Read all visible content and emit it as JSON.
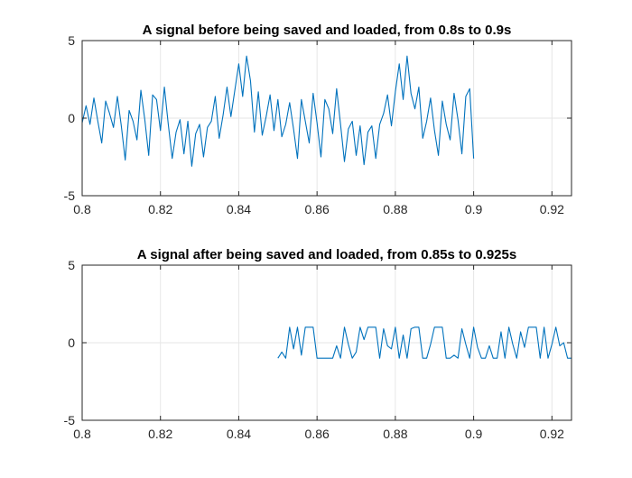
{
  "chart_data": [
    {
      "type": "line",
      "title": "A signal before being saved and loaded, from 0.8s to 0.9s",
      "xlabel": "",
      "ylabel": "",
      "xlim": [
        0.8,
        0.925
      ],
      "ylim": [
        -5,
        5
      ],
      "xticks": [
        0.8,
        0.82,
        0.84,
        0.86,
        0.88,
        0.9,
        0.92
      ],
      "xtick_labels": [
        "0.8",
        "0.82",
        "0.84",
        "0.86",
        "0.88",
        "0.9",
        "0.92"
      ],
      "yticks": [
        -5,
        0,
        5
      ],
      "ytick_labels": [
        "-5",
        "0",
        "5"
      ],
      "grid": true,
      "color": "#0072bd",
      "series": [
        {
          "x": [
            0.8,
            0.801,
            0.802,
            0.803,
            0.804,
            0.805,
            0.806,
            0.807,
            0.808,
            0.809,
            0.81,
            0.811,
            0.812,
            0.813,
            0.814,
            0.815,
            0.816,
            0.817,
            0.818,
            0.819,
            0.82,
            0.821,
            0.822,
            0.823,
            0.824,
            0.825,
            0.826,
            0.827,
            0.828,
            0.829,
            0.83,
            0.831,
            0.832,
            0.833,
            0.834,
            0.835,
            0.836,
            0.837,
            0.838,
            0.839,
            0.84,
            0.841,
            0.842,
            0.843,
            0.844,
            0.845,
            0.846,
            0.847,
            0.848,
            0.849,
            0.85,
            0.851,
            0.852,
            0.853,
            0.854,
            0.855,
            0.856,
            0.857,
            0.858,
            0.859,
            0.86,
            0.861,
            0.862,
            0.863,
            0.864,
            0.865,
            0.866,
            0.867,
            0.868,
            0.869,
            0.87,
            0.871,
            0.872,
            0.873,
            0.874,
            0.875,
            0.876,
            0.877,
            0.878,
            0.879,
            0.88,
            0.881,
            0.882,
            0.883,
            0.884,
            0.885,
            0.886,
            0.887,
            0.888,
            0.889,
            0.89,
            0.891,
            0.892,
            0.893,
            0.894,
            0.895,
            0.896,
            0.897,
            0.898,
            0.899,
            0.9
          ],
          "y": [
            -0.3,
            0.8,
            -0.4,
            1.3,
            -0.2,
            -1.6,
            1.1,
            0.3,
            -0.6,
            1.4,
            -0.5,
            -2.7,
            0.5,
            -0.2,
            -1.4,
            1.8,
            -0.1,
            -2.4,
            1.5,
            1.2,
            -0.8,
            2.0,
            -0.4,
            -2.6,
            -0.9,
            -0.1,
            -2.3,
            -0.2,
            -3.1,
            -1.0,
            -0.4,
            -2.5,
            -0.6,
            -0.2,
            1.4,
            -1.3,
            0.2,
            2.0,
            0.1,
            1.8,
            3.5,
            1.4,
            4.0,
            2.4,
            -0.9,
            1.7,
            -1.1,
            0.1,
            1.5,
            -0.8,
            1.2,
            -1.2,
            -0.4,
            1.0,
            -0.7,
            -2.6,
            1.2,
            -0.2,
            -1.6,
            1.6,
            -0.3,
            -2.5,
            1.2,
            0.6,
            -1.0,
            1.9,
            -0.4,
            -2.8,
            -0.7,
            -0.2,
            -2.4,
            -0.5,
            -3.0,
            -0.9,
            -0.5,
            -2.6,
            -0.4,
            0.3,
            1.5,
            -0.5,
            1.7,
            3.5,
            1.2,
            4.0,
            1.6,
            0.6,
            2.0,
            -1.3,
            -0.2,
            1.3,
            -0.8,
            -2.4,
            1.1,
            -0.4,
            -1.4,
            1.6,
            -0.1,
            -2.3,
            1.4,
            1.9,
            -2.6
          ]
        }
      ]
    },
    {
      "type": "line",
      "title": "A signal after being saved and loaded, from 0.85s to 0.925s",
      "xlabel": "",
      "ylabel": "",
      "xlim": [
        0.8,
        0.925
      ],
      "ylim": [
        -5,
        5
      ],
      "xticks": [
        0.8,
        0.82,
        0.84,
        0.86,
        0.88,
        0.9,
        0.92
      ],
      "xtick_labels": [
        "0.8",
        "0.82",
        "0.84",
        "0.86",
        "0.88",
        "0.9",
        "0.92"
      ],
      "yticks": [
        -5,
        0,
        5
      ],
      "ytick_labels": [
        "-5",
        "0",
        "5"
      ],
      "grid": true,
      "color": "#0072bd",
      "series": [
        {
          "x": [
            0.85,
            0.851,
            0.852,
            0.853,
            0.854,
            0.855,
            0.856,
            0.857,
            0.858,
            0.859,
            0.86,
            0.861,
            0.862,
            0.863,
            0.864,
            0.865,
            0.866,
            0.867,
            0.868,
            0.869,
            0.87,
            0.871,
            0.872,
            0.873,
            0.874,
            0.875,
            0.876,
            0.877,
            0.878,
            0.879,
            0.88,
            0.881,
            0.882,
            0.883,
            0.884,
            0.885,
            0.886,
            0.887,
            0.888,
            0.889,
            0.89,
            0.891,
            0.892,
            0.893,
            0.894,
            0.895,
            0.896,
            0.897,
            0.898,
            0.899,
            0.9,
            0.901,
            0.902,
            0.903,
            0.904,
            0.905,
            0.906,
            0.907,
            0.908,
            0.909,
            0.91,
            0.911,
            0.912,
            0.913,
            0.914,
            0.915,
            0.916,
            0.917,
            0.918,
            0.919,
            0.92,
            0.921,
            0.922,
            0.923,
            0.924,
            0.925
          ],
          "y": [
            -1.0,
            -0.6,
            -1.0,
            1.0,
            -0.4,
            1.0,
            -0.8,
            1.0,
            1.0,
            1.0,
            -1.0,
            -1.0,
            -1.0,
            -1.0,
            -1.0,
            -0.2,
            -1.0,
            1.0,
            -0.1,
            -1.0,
            -0.6,
            1.0,
            0.2,
            1.0,
            1.0,
            1.0,
            -1.0,
            0.9,
            -0.2,
            -0.4,
            1.0,
            -1.0,
            0.5,
            -1.0,
            0.9,
            1.0,
            1.0,
            -1.0,
            -1.0,
            -0.1,
            1.0,
            1.0,
            1.0,
            -1.0,
            -1.0,
            -0.8,
            -1.0,
            0.9,
            -0.1,
            -1.0,
            1.0,
            -0.3,
            -1.0,
            -1.0,
            -0.2,
            -1.0,
            -1.0,
            0.7,
            -1.0,
            1.0,
            -0.1,
            -1.0,
            0.7,
            -0.3,
            1.0,
            1.0,
            1.0,
            -1.0,
            1.0,
            -1.0,
            -0.1,
            1.0,
            -0.2,
            0.0,
            -1.0,
            -1.0
          ]
        }
      ]
    }
  ]
}
